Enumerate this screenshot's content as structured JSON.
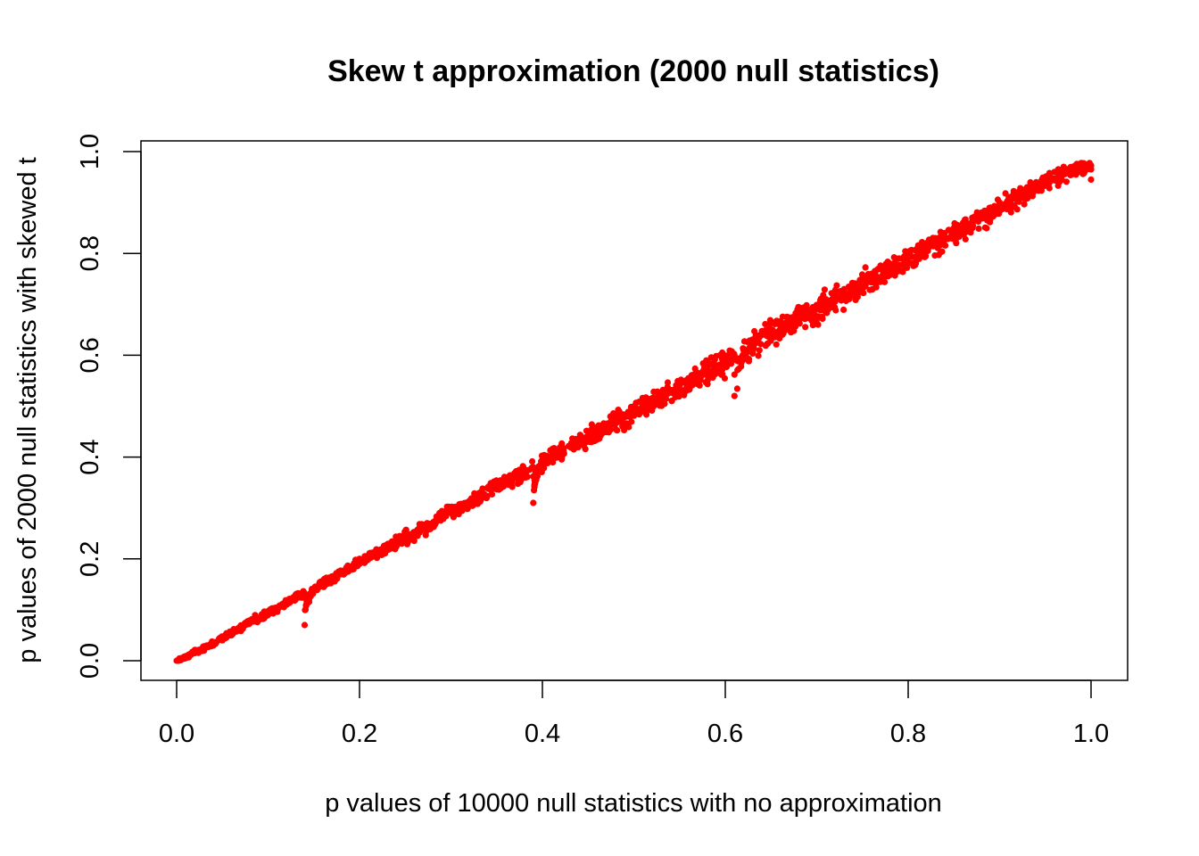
{
  "chart_data": {
    "type": "scatter",
    "title": "Skew t approximation (2000 null statistics)",
    "xlabel": "p values of 10000 null statistics with no approximation",
    "ylabel": "p values of 2000 null statistics with skewed t",
    "xlim": [
      0,
      1
    ],
    "ylim": [
      0,
      1
    ],
    "x_ticks": [
      "0.0",
      "0.2",
      "0.4",
      "0.6",
      "0.8",
      "1.0"
    ],
    "y_ticks": [
      "0.0",
      "0.2",
      "0.4",
      "0.6",
      "0.8",
      "1.0"
    ],
    "grid": false,
    "series": [
      {
        "color": "#ff0000",
        "marker": "filled-circle",
        "n_points": 2000,
        "points": [
          [
            0.0,
            0.0
          ],
          [
            0.01,
            0.005
          ],
          [
            0.02,
            0.015
          ],
          [
            0.03,
            0.02
          ],
          [
            0.04,
            0.03
          ],
          [
            0.05,
            0.04
          ],
          [
            0.06,
            0.05
          ],
          [
            0.07,
            0.06
          ],
          [
            0.08,
            0.075
          ],
          [
            0.09,
            0.08
          ],
          [
            0.1,
            0.09
          ],
          [
            0.11,
            0.1
          ],
          [
            0.12,
            0.11
          ],
          [
            0.13,
            0.12
          ],
          [
            0.14,
            0.125
          ],
          [
            0.14,
            0.07
          ],
          [
            0.15,
            0.14
          ],
          [
            0.16,
            0.15
          ],
          [
            0.17,
            0.16
          ],
          [
            0.18,
            0.17
          ],
          [
            0.19,
            0.18
          ],
          [
            0.2,
            0.19
          ],
          [
            0.21,
            0.2
          ],
          [
            0.22,
            0.21
          ],
          [
            0.23,
            0.22
          ],
          [
            0.24,
            0.23
          ],
          [
            0.25,
            0.24
          ],
          [
            0.26,
            0.25
          ],
          [
            0.27,
            0.26
          ],
          [
            0.28,
            0.265
          ],
          [
            0.29,
            0.28
          ],
          [
            0.3,
            0.29
          ],
          [
            0.31,
            0.3
          ],
          [
            0.32,
            0.31
          ],
          [
            0.33,
            0.32
          ],
          [
            0.34,
            0.34
          ],
          [
            0.35,
            0.35
          ],
          [
            0.36,
            0.35
          ],
          [
            0.37,
            0.36
          ],
          [
            0.38,
            0.37
          ],
          [
            0.39,
            0.38
          ],
          [
            0.39,
            0.31
          ],
          [
            0.4,
            0.39
          ],
          [
            0.41,
            0.4
          ],
          [
            0.42,
            0.41
          ],
          [
            0.43,
            0.42
          ],
          [
            0.44,
            0.43
          ],
          [
            0.45,
            0.44
          ],
          [
            0.46,
            0.45
          ],
          [
            0.47,
            0.46
          ],
          [
            0.48,
            0.47
          ],
          [
            0.49,
            0.48
          ],
          [
            0.5,
            0.49
          ],
          [
            0.51,
            0.5
          ],
          [
            0.52,
            0.51
          ],
          [
            0.53,
            0.52
          ],
          [
            0.54,
            0.53
          ],
          [
            0.55,
            0.54
          ],
          [
            0.56,
            0.55
          ],
          [
            0.57,
            0.56
          ],
          [
            0.58,
            0.57
          ],
          [
            0.59,
            0.58
          ],
          [
            0.6,
            0.59
          ],
          [
            0.61,
            0.6
          ],
          [
            0.61,
            0.52
          ],
          [
            0.62,
            0.61
          ],
          [
            0.63,
            0.63
          ],
          [
            0.64,
            0.64
          ],
          [
            0.65,
            0.65
          ],
          [
            0.66,
            0.66
          ],
          [
            0.67,
            0.67
          ],
          [
            0.68,
            0.68
          ],
          [
            0.69,
            0.69
          ],
          [
            0.7,
            0.69
          ],
          [
            0.71,
            0.71
          ],
          [
            0.72,
            0.72
          ],
          [
            0.73,
            0.73
          ],
          [
            0.74,
            0.74
          ],
          [
            0.75,
            0.75
          ],
          [
            0.76,
            0.76
          ],
          [
            0.77,
            0.77
          ],
          [
            0.78,
            0.78
          ],
          [
            0.79,
            0.79
          ],
          [
            0.8,
            0.8
          ],
          [
            0.81,
            0.81
          ],
          [
            0.82,
            0.82
          ],
          [
            0.83,
            0.83
          ],
          [
            0.84,
            0.84
          ],
          [
            0.85,
            0.85
          ],
          [
            0.86,
            0.86
          ],
          [
            0.87,
            0.87
          ],
          [
            0.88,
            0.88
          ],
          [
            0.89,
            0.89
          ],
          [
            0.9,
            0.9
          ],
          [
            0.91,
            0.91
          ],
          [
            0.92,
            0.92
          ],
          [
            0.93,
            0.93
          ],
          [
            0.94,
            0.94
          ],
          [
            0.95,
            0.95
          ],
          [
            0.96,
            0.96
          ],
          [
            0.97,
            0.97
          ],
          [
            0.98,
            0.97
          ],
          [
            0.99,
            0.97
          ],
          [
            1.0,
            0.965
          ],
          [
            1.0,
            0.945
          ]
        ],
        "trend": "points lie close to the line y = 0.975x; vertical spread about 0.005 near x = 0, widening to about 0.04 in the middle and upper range",
        "spread_by_x": [
          [
            0.0,
            0.005
          ],
          [
            0.2,
            0.015
          ],
          [
            0.4,
            0.025
          ],
          [
            0.6,
            0.035
          ],
          [
            0.8,
            0.035
          ],
          [
            1.0,
            0.02
          ]
        ]
      }
    ]
  }
}
